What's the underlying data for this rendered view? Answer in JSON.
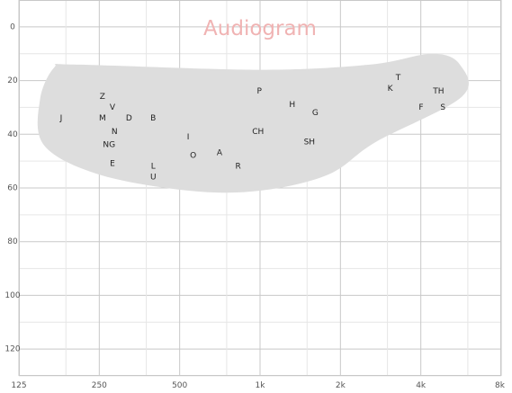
{
  "chart_data": {
    "type": "scatter",
    "title": "Audiogram",
    "xlabel": "",
    "ylabel": "",
    "x_scale": "log2",
    "x_ticks": [
      {
        "value": 125,
        "label": "125"
      },
      {
        "value": 250,
        "label": "250"
      },
      {
        "value": 500,
        "label": "500"
      },
      {
        "value": 1000,
        "label": "1k"
      },
      {
        "value": 2000,
        "label": "2k"
      },
      {
        "value": 4000,
        "label": "4k"
      },
      {
        "value": 8000,
        "label": "8k"
      }
    ],
    "xlim": [
      125,
      8000
    ],
    "y_inverted": true,
    "y_ticks": [
      0,
      20,
      40,
      60,
      80,
      100,
      120
    ],
    "ylim": [
      -10,
      130
    ],
    "grid": true,
    "speech_banana": [
      [
        200,
        14
      ],
      [
        1000,
        16
      ],
      [
        2600,
        14
      ],
      [
        4400,
        10
      ],
      [
        5600,
        14
      ],
      [
        5700,
        26
      ],
      [
        2700,
        43
      ],
      [
        1800,
        55
      ],
      [
        1000,
        61
      ],
      [
        540,
        61
      ],
      [
        250,
        55
      ],
      [
        155,
        44
      ],
      [
        150,
        27
      ],
      [
        170,
        15
      ]
    ],
    "points": [
      {
        "label": "J",
        "freq": 180,
        "db": 34
      },
      {
        "label": "Z",
        "freq": 257,
        "db": 26
      },
      {
        "label": "V",
        "freq": 280,
        "db": 30
      },
      {
        "label": "M",
        "freq": 257,
        "db": 34
      },
      {
        "label": "D",
        "freq": 323,
        "db": 34
      },
      {
        "label": "B",
        "freq": 398,
        "db": 34
      },
      {
        "label": "N",
        "freq": 285,
        "db": 39
      },
      {
        "label": "NG",
        "freq": 272,
        "db": 44
      },
      {
        "label": "E",
        "freq": 280,
        "db": 51
      },
      {
        "label": "L",
        "freq": 398,
        "db": 52
      },
      {
        "label": "U",
        "freq": 398,
        "db": 56
      },
      {
        "label": "I",
        "freq": 538,
        "db": 41
      },
      {
        "label": "O",
        "freq": 562,
        "db": 48
      },
      {
        "label": "A",
        "freq": 705,
        "db": 47
      },
      {
        "label": "R",
        "freq": 828,
        "db": 52
      },
      {
        "label": "P",
        "freq": 994,
        "db": 24
      },
      {
        "label": "CH",
        "freq": 983,
        "db": 39
      },
      {
        "label": "H",
        "freq": 1320,
        "db": 29
      },
      {
        "label": "G",
        "freq": 1610,
        "db": 32
      },
      {
        "label": "SH",
        "freq": 1530,
        "db": 43
      },
      {
        "label": "T",
        "freq": 3290,
        "db": 19
      },
      {
        "label": "K",
        "freq": 3070,
        "db": 23
      },
      {
        "label": "TH",
        "freq": 4660,
        "db": 24
      },
      {
        "label": "F",
        "freq": 4010,
        "db": 30
      },
      {
        "label": "S",
        "freq": 4840,
        "db": 30
      }
    ]
  },
  "colors": {
    "background": "#ffffff",
    "grid_major": "#c8c8c8",
    "grid_minor": "#e6e6e6",
    "banana_fill": "#dddddd",
    "title": "#f0b3b3",
    "phoneme_text": "#222222",
    "tick_text": "#555555"
  }
}
